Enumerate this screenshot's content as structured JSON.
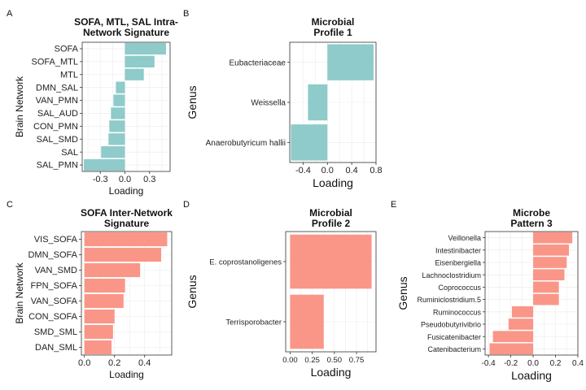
{
  "chart_data": [
    {
      "panel": "A",
      "type": "bar",
      "orientation": "horizontal",
      "title": "SOFA, MTL, SAL Intra-\nNetwork Signature",
      "xlabel": "Loading",
      "ylabel": "Brain Network",
      "color": "#8ecbca",
      "xlim": [
        -0.52,
        0.55
      ],
      "xticks": [
        -0.3,
        0.0,
        0.3
      ],
      "xticklabels": [
        "-0.3",
        "0.0",
        "0.3"
      ],
      "categories": [
        "SOFA",
        "SOFA_MTL",
        "MTL",
        "DMN_SAL",
        "VAN_PMN",
        "SAL_AUD",
        "CON_PMN",
        "SAL_SMD",
        "SAL",
        "SAL_PMN"
      ],
      "values": [
        0.5,
        0.36,
        0.23,
        -0.11,
        -0.14,
        -0.17,
        -0.19,
        -0.2,
        -0.29,
        -0.5
      ]
    },
    {
      "panel": "B",
      "type": "bar",
      "orientation": "horizontal",
      "title": "Microbial\nProfile 1",
      "xlabel": "Loading",
      "ylabel": "Genus",
      "color": "#8ecbca",
      "xlim": [
        -0.62,
        0.8
      ],
      "xticks": [
        -0.4,
        0.0,
        0.4,
        0.8
      ],
      "xticklabels": [
        "-0.4",
        "0.0",
        "0.4",
        "0.8"
      ],
      "categories": [
        "Eubacteriaceae",
        "Weissella",
        "Anaerobutyricum hallii"
      ],
      "values": [
        0.76,
        -0.32,
        -0.6
      ]
    },
    {
      "panel": "C",
      "type": "bar",
      "orientation": "horizontal",
      "title": "SOFA Inter-Network\nSignature",
      "xlabel": "Loading",
      "ylabel": "Brain Network",
      "color": "#fa9688",
      "xlim": [
        -0.02,
        0.58
      ],
      "xticks": [
        0.0,
        0.2,
        0.4
      ],
      "xticklabels": [
        "0.0",
        "0.2",
        "0.4"
      ],
      "categories": [
        "VIS_SOFA",
        "DMN_SOFA",
        "VAN_SMD",
        "FPN_SOFA",
        "VAN_SOFA",
        "CON_SOFA",
        "SMD_SML",
        "DAN_SML"
      ],
      "values": [
        0.55,
        0.51,
        0.37,
        0.27,
        0.26,
        0.2,
        0.19,
        0.18
      ]
    },
    {
      "panel": "D",
      "type": "bar",
      "orientation": "horizontal",
      "title": "Microbial\nProfile 2",
      "xlabel": "Loading",
      "ylabel": "Genus",
      "color": "#fa9688",
      "xlim": [
        -0.05,
        0.97
      ],
      "xticks": [
        0.0,
        0.25,
        0.5,
        0.75
      ],
      "xticklabels": [
        "0.00",
        "0.25",
        "0.50",
        "0.75"
      ],
      "categories": [
        "E. coprostanoligenes",
        "Terrisporobacter"
      ],
      "values": [
        0.92,
        0.38
      ]
    },
    {
      "panel": "E",
      "type": "bar",
      "orientation": "horizontal",
      "title": "Microbe\nPattern 3",
      "xlabel": "Loading",
      "ylabel": "Genus",
      "color": "#fa9688",
      "xlim": [
        -0.43,
        0.4
      ],
      "xticks": [
        -0.4,
        -0.2,
        0.0,
        0.2,
        0.4
      ],
      "xticklabels": [
        "-0.4",
        "-0.2",
        "0.0",
        "0.2",
        "0.4"
      ],
      "categories": [
        "Veillonella",
        "Intestinibacter",
        "Eisenbergiella",
        "Lachnoclostridium",
        "Coprococcus",
        "Ruminiclostridium.5",
        "Ruminococcus",
        "Pseudobutyrivibrio",
        "Fusicatenibacter",
        "Catenibacterium"
      ],
      "values": [
        0.35,
        0.32,
        0.3,
        0.28,
        0.23,
        0.23,
        -0.19,
        -0.22,
        -0.36,
        -0.39
      ]
    }
  ]
}
